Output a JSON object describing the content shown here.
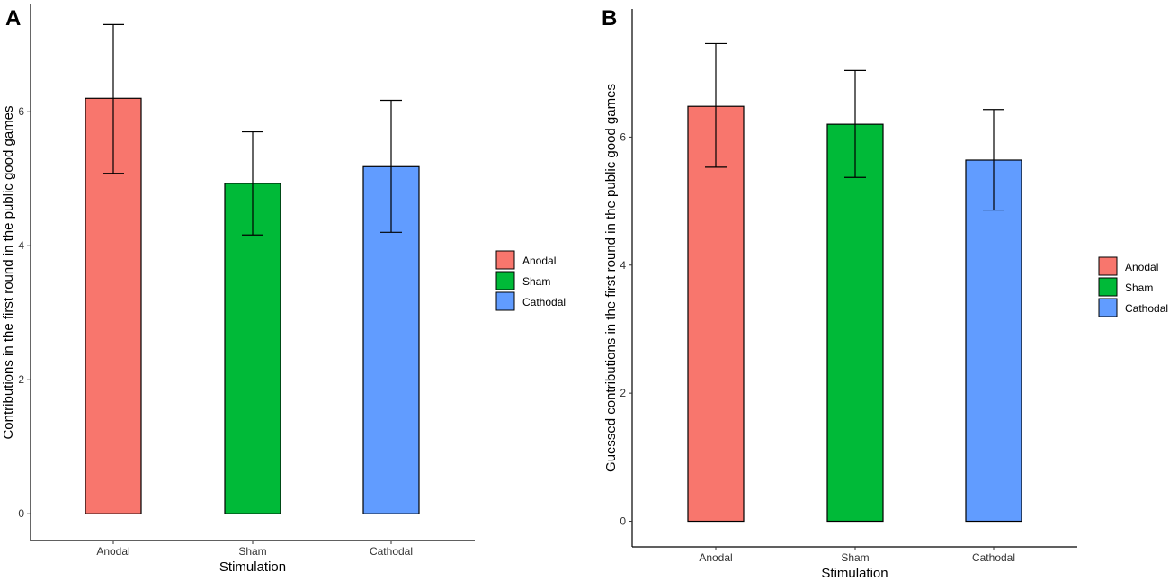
{
  "panels": [
    {
      "panel_label": "A",
      "chart_data": {
        "type": "bar",
        "categories": [
          "Anodal",
          "Sham",
          "Cathodal"
        ],
        "values": [
          6.2,
          4.93,
          5.18
        ],
        "error_low": [
          5.08,
          4.16,
          4.2
        ],
        "error_high": [
          7.3,
          5.7,
          6.17
        ],
        "xlabel": "Stimulation",
        "ylabel": "Contributions  in the first round in the public good games",
        "ylim": [
          -0.4,
          7.6
        ],
        "yticks": [
          0,
          2,
          4,
          6
        ],
        "legend_position": "right"
      }
    },
    {
      "panel_label": "B",
      "chart_data": {
        "type": "bar",
        "categories": [
          "Anodal",
          "Sham",
          "Cathodal"
        ],
        "values": [
          6.48,
          6.2,
          5.64
        ],
        "error_low": [
          5.53,
          5.37,
          4.86
        ],
        "error_high": [
          7.46,
          7.04,
          6.43
        ],
        "xlabel": "Stimulation",
        "ylabel": "Guessed contributions  in the first round in the public good games",
        "ylim": [
          -0.4,
          8.0
        ],
        "yticks": [
          0,
          2,
          4,
          6
        ],
        "legend_position": "right"
      }
    }
  ],
  "legend": {
    "entries": [
      {
        "label": "Anodal",
        "color": "#F8766D"
      },
      {
        "label": "Sham",
        "color": "#00BA38"
      },
      {
        "label": "Cathodal",
        "color": "#619CFF"
      }
    ]
  }
}
